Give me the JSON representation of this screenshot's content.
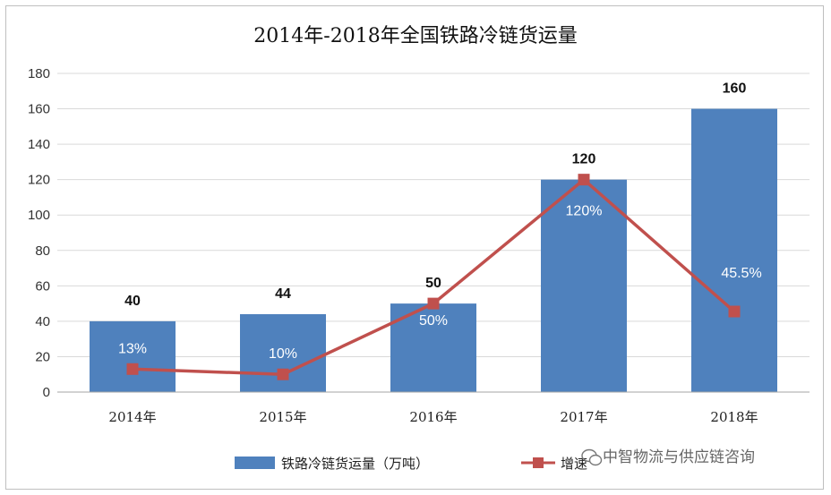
{
  "chart_data": {
    "type": "bar",
    "title": "2014年-2018年全国铁路冷链货运量",
    "categories": [
      "2014年",
      "2015年",
      "2016年",
      "2017年",
      "2018年"
    ],
    "series": [
      {
        "name": "铁路冷链货运量（万吨）",
        "type": "bar",
        "values": [
          40,
          44,
          50,
          120,
          160
        ],
        "color": "#4f81bd"
      },
      {
        "name": "增速",
        "type": "line",
        "values": [
          13,
          10,
          50,
          120,
          45.5
        ],
        "labels": [
          "13%",
          "10%",
          "50%",
          "120%",
          "45.5%"
        ],
        "color": "#c0504d"
      }
    ],
    "ylim": [
      0,
      180
    ],
    "yticks": [
      0,
      20,
      40,
      60,
      80,
      100,
      120,
      140,
      160,
      180
    ],
    "grid": true,
    "legend": "bottom"
  },
  "watermark": "中智物流与供应链咨询"
}
